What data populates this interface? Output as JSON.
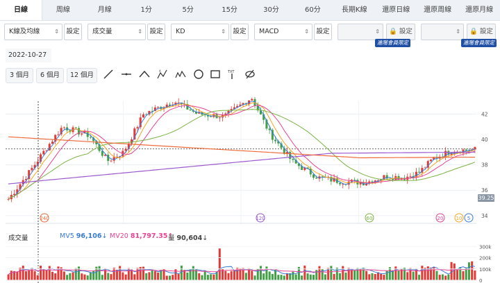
{
  "tabs": [
    "日線",
    "周線",
    "月線",
    "1分",
    "5分",
    "15分",
    "30分",
    "60分",
    "長期K線",
    "還原日線",
    "還原周線",
    "還原月線"
  ],
  "selectors": [
    {
      "value": "K線及均線",
      "button": "設定"
    },
    {
      "value": "成交量",
      "button": "設定"
    },
    {
      "value": "KD",
      "button": "設定"
    },
    {
      "value": "MACD",
      "button": "設定"
    },
    {
      "value": "",
      "button": "設定",
      "locked": true
    },
    {
      "value": "",
      "button": "設定",
      "locked": true,
      "tag": "進階會員限定"
    }
  ],
  "member_tag": "進階會員限定",
  "date": "2022-10-27",
  "range_buttons": [
    "3 個月",
    "6 個月",
    "12 個月"
  ],
  "tools": [
    "line-tool",
    "horizontal-line-tool",
    "angle-tool",
    "abc-pattern-tool",
    "wave-tool",
    "circle-tool",
    "rectangle-tool",
    "text-tool",
    "hide-tool"
  ],
  "chart_data": {
    "type": "candlestick",
    "price_axis": {
      "ticks": [
        42,
        40,
        38,
        36,
        34
      ],
      "current": "39.25"
    },
    "volume_axis": {
      "ticks": [
        "300k",
        "200k",
        "100k",
        "0"
      ]
    },
    "markers": [
      "240",
      "120",
      "60",
      "20",
      "10",
      "5"
    ],
    "marker_colors": {
      "240": "#ef6a3a",
      "120": "#9b59d0",
      "60": "#7cb342",
      "20": "#e84393",
      "10": "#f5a623",
      "5": "#3a7bd5"
    },
    "volume_legend": {
      "title": "成交量",
      "mv5_label": "MV5",
      "mv5_value": "96,106",
      "mv5_arrow": "↓",
      "mv20_label": "MV20",
      "mv20_value": "81,797.35",
      "mv20_arrow": "↑",
      "vol_label": "量",
      "vol_value": "90,604",
      "vol_arrow": "↓"
    },
    "colors": {
      "up": "#e53935",
      "down": "#43a047",
      "ma5": "#3a7bd5",
      "ma10": "#f5a623",
      "ma20": "#e84393",
      "ma60": "#7cb342",
      "ma120": "#9b59d0",
      "ma240": "#ef6a3a"
    }
  }
}
